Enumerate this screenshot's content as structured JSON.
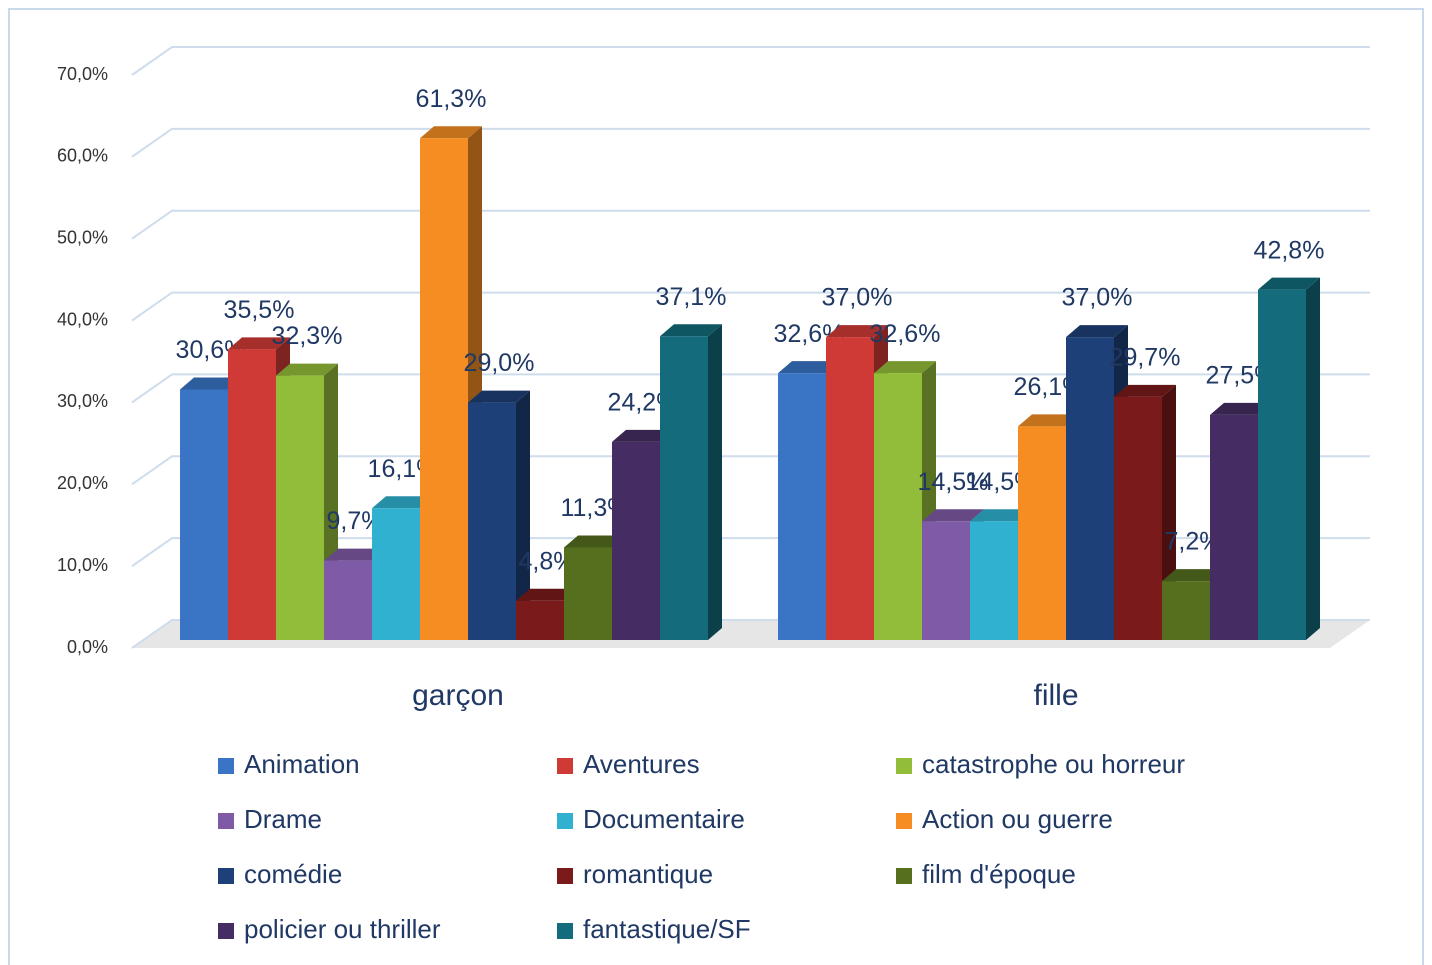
{
  "chart_data": {
    "type": "bar3d",
    "categories": [
      "garçon",
      "fille"
    ],
    "series": [
      {
        "name": "Animation",
        "color": "#3a74c4",
        "values": [
          30.6,
          32.6
        ],
        "value_labels": [
          "30,6%",
          "32,6%"
        ]
      },
      {
        "name": "Aventures",
        "color": "#d03a36",
        "values": [
          35.5,
          37.0
        ],
        "value_labels": [
          "35,5%",
          "37,0%"
        ]
      },
      {
        "name": "catastrophe ou horreur",
        "color": "#92bd3a",
        "values": [
          32.3,
          32.6
        ],
        "value_labels": [
          "32,3%",
          "32,6%"
        ]
      },
      {
        "name": "Drame",
        "color": "#7f5aa6",
        "values": [
          9.7,
          14.5
        ],
        "value_labels": [
          "9,7%",
          "14,5%"
        ]
      },
      {
        "name": "Documentaire",
        "color": "#2fb1cf",
        "values": [
          16.1,
          14.5
        ],
        "value_labels": [
          "16,1%",
          "14,5%"
        ]
      },
      {
        "name": "Action ou guerre",
        "color": "#f58d23",
        "values": [
          61.3,
          26.1
        ],
        "value_labels": [
          "61,3%",
          "26,1%"
        ]
      },
      {
        "name": "comédie",
        "color": "#1e4078",
        "values": [
          29.0,
          37.0
        ],
        "value_labels": [
          "29,0%",
          "37,0%"
        ]
      },
      {
        "name": "romantique",
        "color": "#7b1a1a",
        "values": [
          4.8,
          29.7
        ],
        "value_labels": [
          "4,8%",
          "29,7%"
        ]
      },
      {
        "name": "film d'époque",
        "color": "#556f1f",
        "values": [
          11.3,
          7.2
        ],
        "value_labels": [
          "11,3%",
          "7,2%"
        ]
      },
      {
        "name": "policier ou thriller",
        "color": "#452d63",
        "values": [
          24.2,
          27.5
        ],
        "value_labels": [
          "24,2%",
          "27,5%"
        ]
      },
      {
        "name": "fantastique/SF",
        "color": "#136b7c",
        "values": [
          37.1,
          42.8
        ],
        "value_labels": [
          "37,1%",
          "42,8%"
        ]
      }
    ],
    "ylim": [
      0,
      70
    ],
    "yticks": [
      {
        "value": 0,
        "label": "0,0%"
      },
      {
        "value": 10,
        "label": "10,0%"
      },
      {
        "value": 20,
        "label": "20,0%"
      },
      {
        "value": 30,
        "label": "30,0%"
      },
      {
        "value": 40,
        "label": "40,0%"
      },
      {
        "value": 50,
        "label": "50,0%"
      },
      {
        "value": 60,
        "label": "60,0%"
      },
      {
        "value": 70,
        "label": "70,0%"
      }
    ],
    "grid": true,
    "legend": "bottom"
  }
}
